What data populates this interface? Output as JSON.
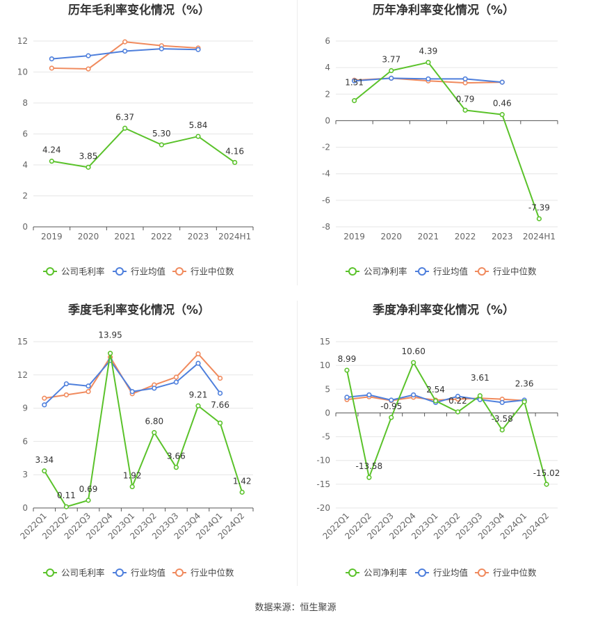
{
  "colors": {
    "company": "#5ac22a",
    "avg": "#4e7fdc",
    "median": "#f08a5d",
    "grid": "#e6e6e6",
    "axis": "#555555",
    "tick": "#666666",
    "title": "#333333",
    "label": "#333333"
  },
  "legend": {
    "company_gross": "公司毛利率",
    "company_net": "公司净利率",
    "avg": "行业均值",
    "median": "行业中位数"
  },
  "footer": "数据来源：恒生聚源",
  "chart_data": [
    {
      "id": "annual-gross",
      "type": "line",
      "title": "历年毛利率变化情况（%）",
      "categories": [
        "2019",
        "2020",
        "2021",
        "2022",
        "2023",
        "2024H1"
      ],
      "ylim": [
        0,
        12
      ],
      "yticks": [
        0,
        2,
        4,
        6,
        8,
        10,
        12
      ],
      "series": [
        {
          "name": "公司毛利率",
          "values": [
            4.24,
            3.85,
            6.37,
            5.3,
            5.84,
            4.16
          ],
          "labels": [
            "4.24",
            "3.85",
            "6.37",
            "5.30",
            "5.84",
            "4.16"
          ]
        },
        {
          "name": "行业均值",
          "values": [
            10.85,
            11.05,
            11.35,
            11.5,
            11.45,
            null
          ]
        },
        {
          "name": "行业中位数",
          "values": [
            10.25,
            10.2,
            11.95,
            11.7,
            11.55,
            null
          ]
        }
      ]
    },
    {
      "id": "annual-net",
      "type": "line",
      "title": "历年净利率变化情况（%）",
      "categories": [
        "2019",
        "2020",
        "2021",
        "2022",
        "2023",
        "2024H1"
      ],
      "ylim": [
        -8,
        6
      ],
      "yticks": [
        -8,
        -6,
        -4,
        -2,
        0,
        2,
        4,
        6
      ],
      "series": [
        {
          "name": "公司净利率",
          "values": [
            1.51,
            3.77,
            4.39,
            0.79,
            0.46,
            -7.39
          ],
          "labels": [
            "1.51",
            "3.77",
            "4.39",
            "0.79",
            "0.46",
            "-7.39"
          ]
        },
        {
          "name": "行业均值",
          "values": [
            3.0,
            3.2,
            3.15,
            3.15,
            2.9,
            null
          ]
        },
        {
          "name": "行业中位数",
          "values": [
            3.05,
            3.2,
            3.0,
            2.85,
            2.9,
            null
          ]
        }
      ]
    },
    {
      "id": "quarterly-gross",
      "type": "line",
      "title": "季度毛利率变化情况（%）",
      "categories": [
        "2022Q1",
        "2022Q2",
        "2022Q3",
        "2022Q4",
        "2023Q1",
        "2023Q2",
        "2023Q3",
        "2023Q4",
        "2024Q1",
        "2024Q2"
      ],
      "ylim": [
        0,
        15
      ],
      "yticks": [
        0,
        3,
        6,
        9,
        12,
        15
      ],
      "series": [
        {
          "name": "公司毛利率",
          "values": [
            3.34,
            0.11,
            0.69,
            13.95,
            1.92,
            6.8,
            3.66,
            9.21,
            7.66,
            1.42
          ],
          "labels": [
            "3.34",
            "0.11",
            "0.69",
            "13.95",
            "1.92",
            "6.80",
            "3.66",
            "9.21",
            "7.66",
            "1.42"
          ]
        },
        {
          "name": "行业均值",
          "values": [
            9.3,
            11.2,
            11.0,
            13.3,
            10.5,
            10.8,
            11.35,
            13.05,
            10.35,
            null
          ]
        },
        {
          "name": "行业中位数",
          "values": [
            9.9,
            10.2,
            10.5,
            13.6,
            10.3,
            11.1,
            11.8,
            13.9,
            11.7,
            null
          ]
        }
      ]
    },
    {
      "id": "quarterly-net",
      "type": "line",
      "title": "季度净利率变化情况（%）",
      "categories": [
        "2022Q1",
        "2022Q2",
        "2022Q3",
        "2022Q4",
        "2023Q1",
        "2023Q2",
        "2023Q3",
        "2023Q4",
        "2024Q1",
        "2024Q2"
      ],
      "ylim": [
        -20,
        15
      ],
      "yticks": [
        -20,
        -15,
        -10,
        -5,
        0,
        5,
        10,
        15
      ],
      "series": [
        {
          "name": "公司净利率",
          "values": [
            8.99,
            -13.58,
            -0.95,
            10.6,
            2.54,
            0.22,
            3.61,
            -3.58,
            2.36,
            -15.02
          ],
          "labels": [
            "8.99",
            "-13.58",
            "-0.95",
            "10.60",
            "2.54",
            "0.22",
            "3.61",
            "-3.58",
            "2.36",
            "-15.02"
          ]
        },
        {
          "name": "行业均值",
          "values": [
            3.3,
            3.8,
            2.7,
            3.8,
            2.2,
            3.5,
            2.8,
            2.2,
            2.7,
            null
          ]
        },
        {
          "name": "行业中位数",
          "values": [
            2.8,
            3.4,
            2.6,
            3.3,
            2.7,
            2.9,
            3.1,
            2.9,
            2.6,
            null
          ]
        }
      ]
    }
  ]
}
